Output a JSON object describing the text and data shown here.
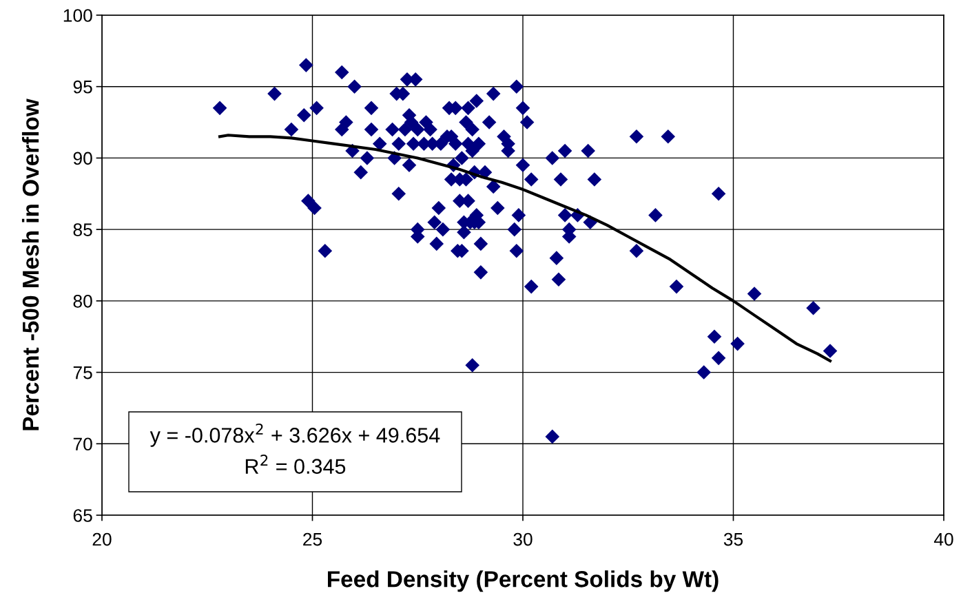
{
  "chart_data": {
    "type": "scatter",
    "xlabel": "Feed Density (Percent Solids by Wt)",
    "ylabel": "Percent -500 Mesh in Overflow",
    "xlim": [
      20,
      40
    ],
    "xticks": [
      20,
      25,
      30,
      35,
      40
    ],
    "ylim": [
      65,
      100
    ],
    "yticks": [
      65,
      70,
      75,
      80,
      85,
      90,
      95,
      100
    ],
    "grid": true,
    "marker": "diamond",
    "annotations": [
      "y = -0.078x$^{2}$ + 3.626x + 49.654",
      "R$^{2}$ = 0.345"
    ],
    "series": [
      {
        "color": "#000080",
        "x": [
          22.8,
          24.1,
          24.5,
          24.8,
          24.85,
          24.9,
          25.05,
          25.1,
          25.3,
          25.7,
          25.7,
          25.8,
          25.95,
          26.0,
          26.15,
          26.3,
          26.4,
          26.4,
          26.6,
          26.9,
          26.95,
          27.0,
          27.05,
          27.05,
          27.15,
          27.2,
          27.25,
          27.3,
          27.3,
          27.35,
          27.4,
          27.45,
          27.5,
          27.5,
          27.5,
          27.65,
          27.7,
          27.8,
          27.85,
          27.9,
          27.95,
          28.0,
          28.05,
          28.1,
          28.2,
          28.25,
          28.3,
          28.3,
          28.35,
          28.4,
          28.4,
          28.45,
          28.5,
          28.5,
          28.55,
          28.55,
          28.6,
          28.6,
          28.65,
          28.65,
          28.7,
          28.7,
          28.7,
          28.75,
          28.8,
          28.8,
          28.8,
          28.85,
          28.85,
          28.9,
          28.9,
          28.95,
          28.95,
          29.0,
          29.0,
          29.1,
          29.2,
          29.3,
          29.3,
          29.4,
          29.55,
          29.65,
          29.65,
          29.8,
          29.85,
          29.85,
          29.9,
          30.0,
          30.0,
          30.1,
          30.2,
          30.2,
          30.7,
          30.7,
          30.8,
          30.85,
          30.9,
          31.0,
          31.0,
          31.1,
          31.1,
          31.3,
          31.55,
          31.6,
          31.7,
          32.7,
          32.7,
          33.15,
          33.45,
          33.65,
          34.3,
          34.55,
          34.65,
          34.65,
          35.1,
          35.5,
          36.9,
          37.3
        ],
        "values": [
          93.5,
          94.5,
          92,
          93,
          96.5,
          87,
          86.5,
          93.5,
          83.5,
          92,
          96,
          92.5,
          90.5,
          95,
          89,
          90,
          93.5,
          92,
          91,
          92,
          90,
          94.5,
          91,
          87.5,
          94.5,
          92,
          95.5,
          89.5,
          93,
          92.5,
          91,
          95.5,
          92,
          85,
          84.5,
          91,
          92.5,
          92,
          91,
          85.5,
          84,
          86.5,
          91,
          85,
          91.5,
          93.5,
          88.5,
          91.5,
          89.5,
          93.5,
          91,
          83.5,
          88.5,
          87,
          83.5,
          90,
          84.8,
          85.5,
          88.5,
          92.5,
          87,
          93.5,
          91,
          85.5,
          75.5,
          90.5,
          92,
          89,
          85.5,
          94,
          86,
          91,
          85.5,
          84,
          82,
          89,
          92.5,
          88,
          94.5,
          86.5,
          91.5,
          91,
          90.5,
          85,
          83.5,
          95,
          86,
          93.5,
          89.5,
          92.5,
          88.5,
          81,
          90,
          70.5,
          83,
          81.5,
          88.5,
          86,
          90.5,
          85,
          84.5,
          86,
          90.5,
          85.5,
          88.5,
          91.5,
          83.5,
          86,
          91.5,
          81,
          75,
          77.5,
          76,
          87.5,
          77,
          80.5,
          79.5,
          76.5
        ]
      },
      {
        "type": "line",
        "color": "#000000",
        "marker": "none",
        "x": [
          22.8,
          23,
          23.5,
          24,
          24.5,
          25,
          25.5,
          26,
          26.5,
          27,
          27.5,
          28,
          28.5,
          29,
          29.5,
          30,
          30.5,
          31,
          31.5,
          32,
          32.5,
          33,
          33.5,
          34,
          34.5,
          35,
          35.5,
          36,
          36.5,
          37,
          37.3
        ],
        "values": [
          91.5,
          91.6,
          91.5,
          91.5,
          91.4,
          91.2,
          91.0,
          90.8,
          90.6,
          90.3,
          90.0,
          89.6,
          89.2,
          88.7,
          88.3,
          87.8,
          87.2,
          86.6,
          86.0,
          85.3,
          84.5,
          83.7,
          82.9,
          81.9,
          80.9,
          80.0,
          79.0,
          78.0,
          77.0,
          76.3,
          75.8
        ]
      }
    ]
  }
}
